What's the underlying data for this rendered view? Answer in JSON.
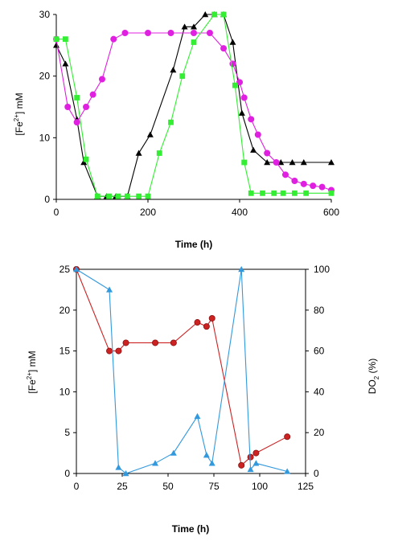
{
  "chart_data": [
    {
      "type": "line",
      "title": "",
      "xlabel": "Time (h)",
      "ylabel": "[Fe2+] mM",
      "xlim": [
        0,
        600
      ],
      "ylim": [
        0,
        30
      ],
      "xticks": [
        0,
        200,
        400,
        600
      ],
      "yticks": [
        0,
        10,
        20,
        30
      ],
      "grid": false,
      "series": [
        {
          "color": "#000000",
          "marker": "triangle",
          "points": [
            [
              0,
              25
            ],
            [
              20,
              22
            ],
            [
              45,
              13
            ],
            [
              60,
              6
            ],
            [
              90,
              0.5
            ],
            [
              110,
              0.5
            ],
            [
              130,
              0.5
            ],
            [
              155,
              0.5
            ],
            [
              180,
              7.5
            ],
            [
              205,
              10.5
            ],
            [
              255,
              21
            ],
            [
              280,
              28
            ],
            [
              300,
              28
            ],
            [
              325,
              30
            ],
            [
              345,
              30
            ],
            [
              365,
              30
            ],
            [
              385,
              25.5
            ],
            [
              405,
              14
            ],
            [
              430,
              8
            ],
            [
              460,
              6
            ],
            [
              490,
              6
            ],
            [
              515,
              6
            ],
            [
              540,
              6
            ],
            [
              600,
              6
            ]
          ]
        },
        {
          "color": "#e020e0",
          "marker": "circle",
          "points": [
            [
              0,
              26
            ],
            [
              25,
              15
            ],
            [
              45,
              12.5
            ],
            [
              65,
              15
            ],
            [
              80,
              17
            ],
            [
              100,
              19.5
            ],
            [
              125,
              26
            ],
            [
              150,
              27
            ],
            [
              200,
              27
            ],
            [
              250,
              27
            ],
            [
              300,
              27
            ],
            [
              335,
              27
            ],
            [
              365,
              24.5
            ],
            [
              385,
              22
            ],
            [
              400,
              19
            ],
            [
              410,
              16.5
            ],
            [
              425,
              13
            ],
            [
              440,
              10.5
            ],
            [
              460,
              7.5
            ],
            [
              480,
              6
            ],
            [
              500,
              4
            ],
            [
              520,
              3
            ],
            [
              540,
              2.5
            ],
            [
              560,
              2.2
            ],
            [
              580,
              2
            ],
            [
              600,
              1.5
            ]
          ]
        },
        {
          "color": "#33ee33",
          "marker": "square",
          "points": [
            [
              0,
              26
            ],
            [
              20,
              26
            ],
            [
              45,
              16.5
            ],
            [
              65,
              6.5
            ],
            [
              90,
              0.5
            ],
            [
              115,
              0.5
            ],
            [
              135,
              0.5
            ],
            [
              155,
              0.5
            ],
            [
              180,
              0.5
            ],
            [
              200,
              0.5
            ],
            [
              225,
              7.5
            ],
            [
              250,
              12.5
            ],
            [
              275,
              20
            ],
            [
              300,
              25.5
            ],
            [
              345,
              30
            ],
            [
              365,
              30
            ],
            [
              390,
              18.5
            ],
            [
              410,
              6
            ],
            [
              425,
              1
            ],
            [
              450,
              1
            ],
            [
              475,
              1
            ],
            [
              495,
              1
            ],
            [
              520,
              1
            ],
            [
              545,
              1
            ],
            [
              600,
              1
            ]
          ]
        }
      ]
    },
    {
      "type": "line",
      "title": "",
      "xlabel": "Time (h)",
      "ylabel": "[Fe2+] mM",
      "y2label": "DO2 (%)",
      "xlim": [
        0,
        125
      ],
      "ylim": [
        0,
        25
      ],
      "y2lim": [
        0,
        100
      ],
      "xticks": [
        0,
        25,
        50,
        75,
        100,
        125
      ],
      "yticks": [
        0,
        5,
        10,
        15,
        20,
        25
      ],
      "y2ticks": [
        0,
        20,
        40,
        60,
        80,
        100
      ],
      "grid": false,
      "series": [
        {
          "color": "#cc2222",
          "marker": "circle",
          "axis": "left",
          "points": [
            [
              0,
              25
            ],
            [
              18,
              15
            ],
            [
              23,
              15
            ],
            [
              27,
              16
            ],
            [
              43,
              16
            ],
            [
              53,
              16
            ],
            [
              66,
              18.5
            ],
            [
              71,
              18
            ],
            [
              74,
              19
            ],
            [
              90,
              1
            ],
            [
              95,
              2
            ],
            [
              98,
              2.5
            ],
            [
              115,
              4.5
            ]
          ]
        },
        {
          "color": "#3399dd",
          "marker": "triangle",
          "axis": "right",
          "points": [
            [
              0,
              100
            ],
            [
              18,
              90
            ],
            [
              23,
              3
            ],
            [
              27,
              0
            ],
            [
              43,
              5
            ],
            [
              53,
              10
            ],
            [
              66,
              28
            ],
            [
              71,
              9
            ],
            [
              74,
              5
            ],
            [
              90,
              100
            ],
            [
              95,
              2
            ],
            [
              98,
              5
            ],
            [
              115,
              1
            ]
          ]
        }
      ]
    }
  ]
}
